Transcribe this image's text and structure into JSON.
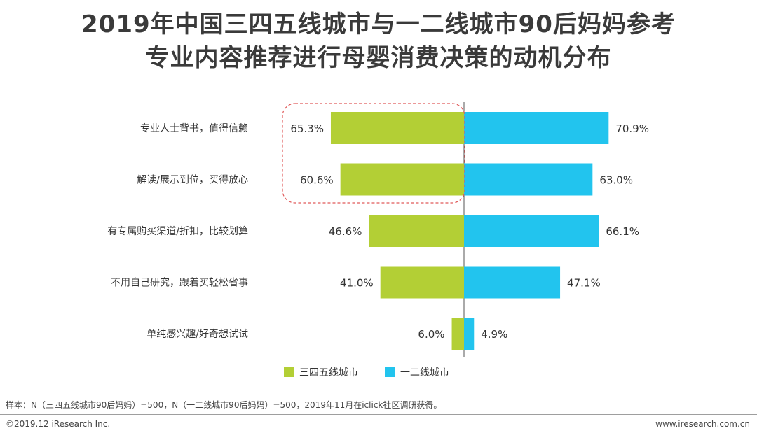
{
  "title_line1": "2019年中国三四五线城市与一二线城市90后妈妈参考",
  "title_line2": "专业内容推荐进行母婴消费决策的动机分布",
  "chart_data": {
    "type": "bar",
    "orientation": "horizontal-diverging",
    "categories": [
      "专业人士背书，值得信赖",
      "解读/展示到位，买得放心",
      "有专属购买渠道/折扣，比较划算",
      "不用自己研究，跟着买轻松省事",
      "单纯感兴趣/好奇想试试"
    ],
    "series": [
      {
        "name": "三四五线城市",
        "values": [
          65.3,
          60.6,
          46.6,
          41.0,
          6.0
        ],
        "labels": [
          "65.3%",
          "60.6%",
          "46.6%",
          "41.0%",
          "6.0%"
        ],
        "color": "#b3cf35",
        "side": "left"
      },
      {
        "name": "一二线城市",
        "values": [
          70.9,
          63.0,
          66.1,
          47.1,
          4.9
        ],
        "labels": [
          "70.9%",
          "63.0%",
          "66.1%",
          "47.1%",
          "4.9%"
        ],
        "color": "#22c4ee",
        "side": "right"
      }
    ],
    "unit": "%",
    "legend_position": "bottom",
    "highlight": "dashed box around first two 三四五线城市 bars",
    "highlight_color": "#e05a5a"
  },
  "note": "样本：N（三四五线城市90后妈妈）=500，N（一二线城市90后妈妈）=500，2019年11月在iclick社区调研获得。",
  "footer_left": "©2019.12 iResearch Inc.",
  "footer_right": "www.iresearch.com.cn"
}
